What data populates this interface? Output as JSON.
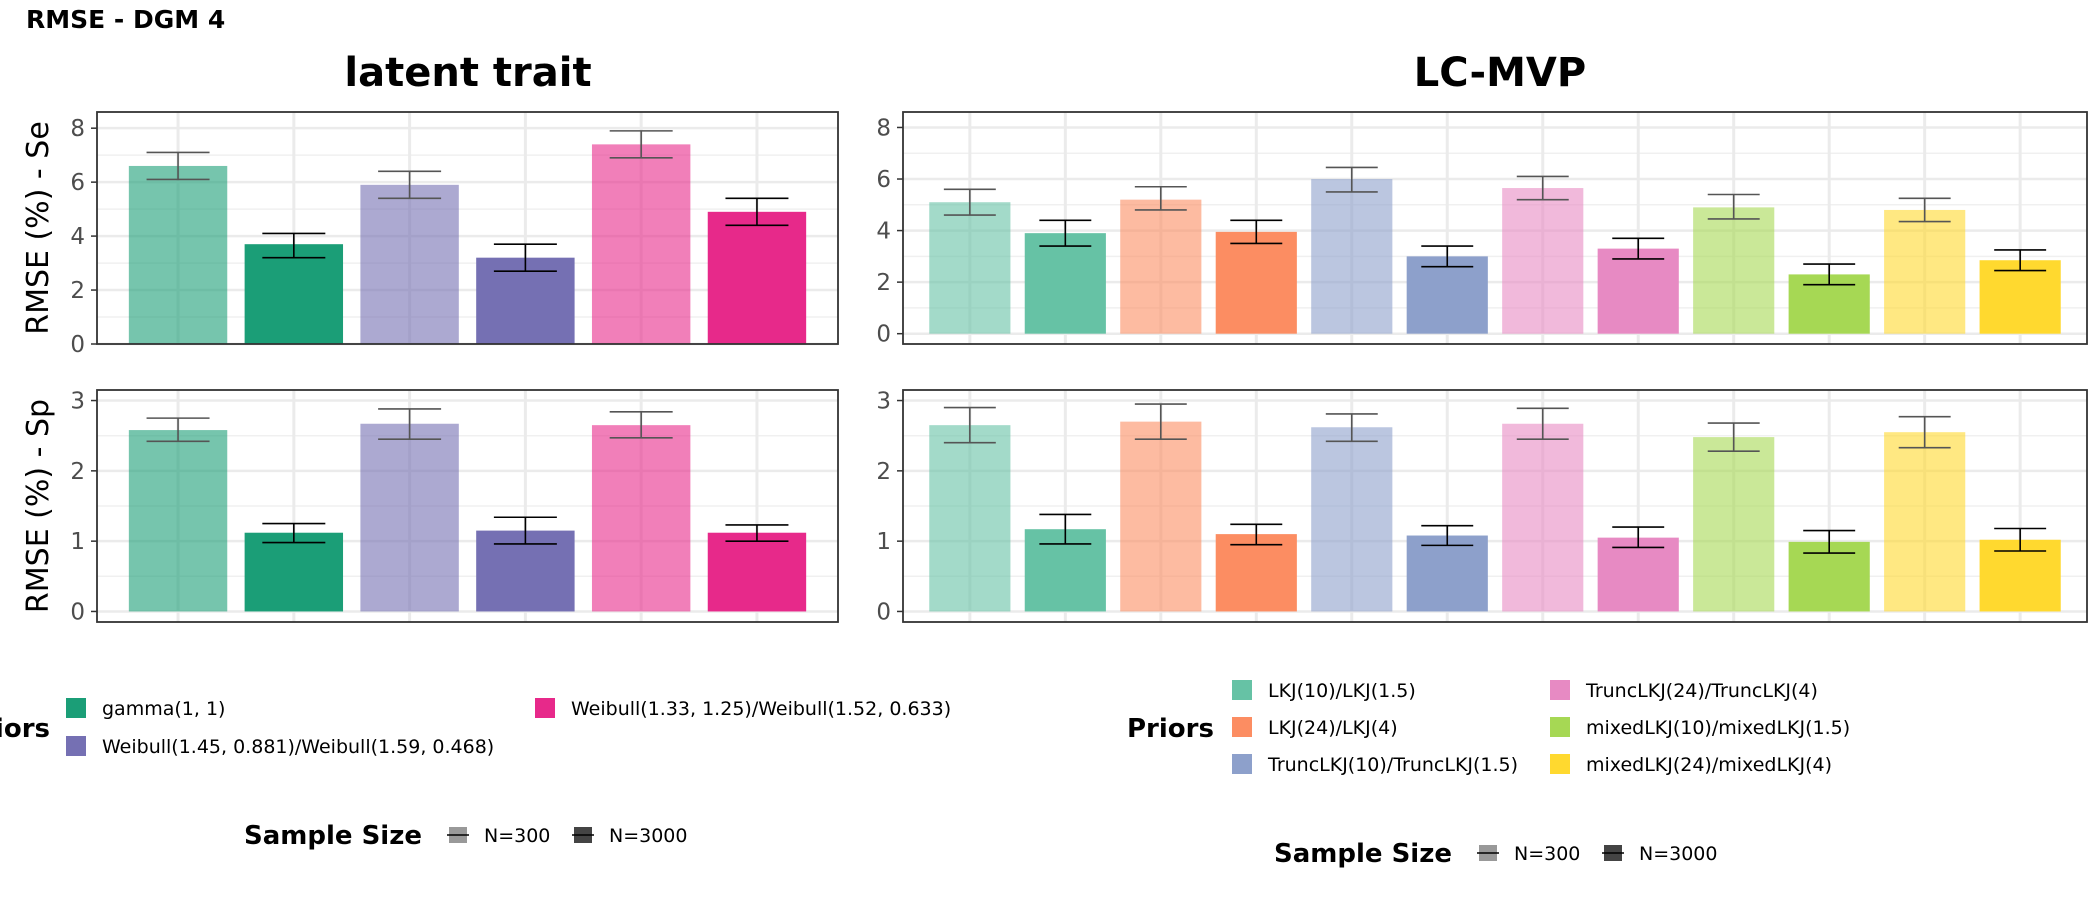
{
  "page_title": "RMSE - DGM 4",
  "chart_data": [
    {
      "type": "bar",
      "panel": "latent trait",
      "row": "RMSE (%) - Se",
      "ylabel": "RMSE (%) - Se",
      "ylim": [
        0,
        8.6
      ],
      "yticks": [
        0,
        2,
        4,
        6,
        8
      ],
      "groups": [
        {
          "prior": "gamma(1, 1)",
          "color": "#1b9e77",
          "bars": [
            {
              "n": "N=300",
              "value": 6.6,
              "lo": 6.1,
              "hi": 7.1
            },
            {
              "n": "N=3000",
              "value": 3.7,
              "lo": 3.2,
              "hi": 4.1
            }
          ]
        },
        {
          "prior": "Weibull(1.45, 0.881)/Weibull(1.59, 0.468)",
          "color": "#7570b3",
          "bars": [
            {
              "n": "N=300",
              "value": 5.9,
              "lo": 5.4,
              "hi": 6.4
            },
            {
              "n": "N=3000",
              "value": 3.2,
              "lo": 2.7,
              "hi": 3.7
            }
          ]
        },
        {
          "prior": "Weibull(1.33, 1.25)/Weibull(1.52, 0.633)",
          "color": "#e7298a",
          "bars": [
            {
              "n": "N=300",
              "value": 7.4,
              "lo": 6.9,
              "hi": 7.9
            },
            {
              "n": "N=3000",
              "value": 4.9,
              "lo": 4.4,
              "hi": 5.4
            }
          ]
        }
      ]
    },
    {
      "type": "bar",
      "panel": "latent trait",
      "row": "RMSE (%) - Sp",
      "ylabel": "RMSE (%) - Sp",
      "ylim": [
        -0.15,
        3.15
      ],
      "yticks": [
        0,
        1,
        2,
        3
      ],
      "groups": [
        {
          "prior": "gamma(1, 1)",
          "color": "#1b9e77",
          "bars": [
            {
              "n": "N=300",
              "value": 2.58,
              "lo": 2.42,
              "hi": 2.75
            },
            {
              "n": "N=3000",
              "value": 1.12,
              "lo": 0.98,
              "hi": 1.25
            }
          ]
        },
        {
          "prior": "Weibull(1.45, 0.881)/Weibull(1.59, 0.468)",
          "color": "#7570b3",
          "bars": [
            {
              "n": "N=300",
              "value": 2.67,
              "lo": 2.45,
              "hi": 2.88
            },
            {
              "n": "N=3000",
              "value": 1.15,
              "lo": 0.96,
              "hi": 1.34
            }
          ]
        },
        {
          "prior": "Weibull(1.33, 1.25)/Weibull(1.52, 0.633)",
          "color": "#e7298a",
          "bars": [
            {
              "n": "N=300",
              "value": 2.65,
              "lo": 2.47,
              "hi": 2.84
            },
            {
              "n": "N=3000",
              "value": 1.12,
              "lo": 1.0,
              "hi": 1.23
            }
          ]
        }
      ]
    },
    {
      "type": "bar",
      "panel": "LC-MVP",
      "row": "RMSE (%) - Se",
      "ylim": [
        -0.4,
        8.6
      ],
      "yticks": [
        0,
        2,
        4,
        6,
        8
      ],
      "groups": [
        {
          "prior": "LKJ(10)/LKJ(1.5)",
          "color": "#66c2a5",
          "bars": [
            {
              "n": "N=300",
              "value": 5.1,
              "lo": 4.6,
              "hi": 5.6
            },
            {
              "n": "N=3000",
              "value": 3.9,
              "lo": 3.4,
              "hi": 4.4
            }
          ]
        },
        {
          "prior": "LKJ(24)/LKJ(4)",
          "color": "#fc8d62",
          "bars": [
            {
              "n": "N=300",
              "value": 5.2,
              "lo": 4.8,
              "hi": 5.7
            },
            {
              "n": "N=3000",
              "value": 3.95,
              "lo": 3.5,
              "hi": 4.4
            }
          ]
        },
        {
          "prior": "TruncLKJ(10)/TruncLKJ(1.5)",
          "color": "#8da0cb",
          "bars": [
            {
              "n": "N=300",
              "value": 6.0,
              "lo": 5.5,
              "hi": 6.45
            },
            {
              "n": "N=3000",
              "value": 3.0,
              "lo": 2.6,
              "hi": 3.4
            }
          ]
        },
        {
          "prior": "TruncLKJ(24)/TruncLKJ(4)",
          "color": "#e78ac3",
          "bars": [
            {
              "n": "N=300",
              "value": 5.65,
              "lo": 5.2,
              "hi": 6.1
            },
            {
              "n": "N=3000",
              "value": 3.3,
              "lo": 2.9,
              "hi": 3.7
            }
          ]
        },
        {
          "prior": "mixedLKJ(10)/mixedLKJ(1.5)",
          "color": "#a6d854",
          "bars": [
            {
              "n": "N=300",
              "value": 4.9,
              "lo": 4.45,
              "hi": 5.4
            },
            {
              "n": "N=3000",
              "value": 2.3,
              "lo": 1.9,
              "hi": 2.7
            }
          ]
        },
        {
          "prior": "mixedLKJ(24)/mixedLKJ(4)",
          "color": "#ffd92f",
          "bars": [
            {
              "n": "N=300",
              "value": 4.8,
              "lo": 4.35,
              "hi": 5.25
            },
            {
              "n": "N=3000",
              "value": 2.85,
              "lo": 2.45,
              "hi": 3.25
            }
          ]
        }
      ]
    },
    {
      "type": "bar",
      "panel": "LC-MVP",
      "row": "RMSE (%) - Sp",
      "ylim": [
        -0.15,
        3.15
      ],
      "yticks": [
        0,
        1,
        2,
        3
      ],
      "groups": [
        {
          "prior": "LKJ(10)/LKJ(1.5)",
          "color": "#66c2a5",
          "bars": [
            {
              "n": "N=300",
              "value": 2.65,
              "lo": 2.4,
              "hi": 2.9
            },
            {
              "n": "N=3000",
              "value": 1.17,
              "lo": 0.96,
              "hi": 1.38
            }
          ]
        },
        {
          "prior": "LKJ(24)/LKJ(4)",
          "color": "#fc8d62",
          "bars": [
            {
              "n": "N=300",
              "value": 2.7,
              "lo": 2.45,
              "hi": 2.95
            },
            {
              "n": "N=3000",
              "value": 1.1,
              "lo": 0.95,
              "hi": 1.24
            }
          ]
        },
        {
          "prior": "TruncLKJ(10)/TruncLKJ(1.5)",
          "color": "#8da0cb",
          "bars": [
            {
              "n": "N=300",
              "value": 2.62,
              "lo": 2.42,
              "hi": 2.81
            },
            {
              "n": "N=3000",
              "value": 1.08,
              "lo": 0.94,
              "hi": 1.22
            }
          ]
        },
        {
          "prior": "TruncLKJ(24)/TruncLKJ(4)",
          "color": "#e78ac3",
          "bars": [
            {
              "n": "N=300",
              "value": 2.67,
              "lo": 2.45,
              "hi": 2.89
            },
            {
              "n": "N=3000",
              "value": 1.05,
              "lo": 0.91,
              "hi": 1.2
            }
          ]
        },
        {
          "prior": "mixedLKJ(10)/mixedLKJ(1.5)",
          "color": "#a6d854",
          "bars": [
            {
              "n": "N=300",
              "value": 2.48,
              "lo": 2.28,
              "hi": 2.68
            },
            {
              "n": "N=3000",
              "value": 0.99,
              "lo": 0.83,
              "hi": 1.15
            }
          ]
        },
        {
          "prior": "mixedLKJ(24)/mixedLKJ(4)",
          "color": "#ffd92f",
          "bars": [
            {
              "n": "N=300",
              "value": 2.55,
              "lo": 2.33,
              "hi": 2.77
            },
            {
              "n": "N=3000",
              "value": 1.02,
              "lo": 0.86,
              "hi": 1.18
            }
          ]
        }
      ]
    }
  ],
  "panels": {
    "left_title": "latent trait",
    "right_title": "LC-MVP"
  },
  "legends": {
    "left": {
      "title": "Priors",
      "items": [
        "gamma(1, 1)",
        "Weibull(1.45, 0.881)/Weibull(1.59, 0.468)",
        "Weibull(1.33, 1.25)/Weibull(1.52, 0.633)"
      ],
      "colors": [
        "#1b9e77",
        "#7570b3",
        "#e7298a"
      ],
      "size_title": "Sample Size",
      "size_items": [
        "N=300",
        "N=3000"
      ]
    },
    "right": {
      "title": "Priors",
      "items": [
        "LKJ(10)/LKJ(1.5)",
        "LKJ(24)/LKJ(4)",
        "TruncLKJ(10)/TruncLKJ(1.5)",
        "TruncLKJ(24)/TruncLKJ(4)",
        "mixedLKJ(10)/mixedLKJ(1.5)",
        "mixedLKJ(24)/mixedLKJ(4)"
      ],
      "colors": [
        "#66c2a5",
        "#fc8d62",
        "#8da0cb",
        "#e78ac3",
        "#a6d854",
        "#ffd92f"
      ],
      "size_title": "Sample Size",
      "size_items": [
        "N=300",
        "N=3000"
      ]
    }
  }
}
